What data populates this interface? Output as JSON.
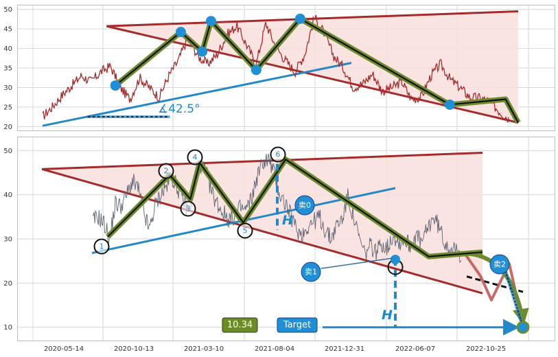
{
  "colors": {
    "price_top": "#a52a2a",
    "price_bottom": "#5c6474",
    "triangle_line": "#a52a2a",
    "triangle_fill": "#f9dfdc",
    "support": "#2288c9",
    "wave_outer": "#6e8c2e",
    "wave_inner": "#111111",
    "marker": "#1f8fd6",
    "value_box": "#6b8e23",
    "target_box": "#1f8fd6"
  },
  "chart_data": [
    {
      "type": "line",
      "panel": "top",
      "ylim": [
        19,
        51
      ],
      "y_ticks": [
        20,
        25,
        30,
        35,
        40,
        45,
        50
      ],
      "grid": true,
      "series": [
        {
          "role": "price",
          "values": [
            22.5,
            25,
            28,
            30.5,
            33,
            31.5,
            34,
            35.5,
            30,
            27,
            32.5,
            30,
            27.5,
            33,
            37,
            43,
            38,
            36,
            38.5,
            43.5,
            45.8,
            41,
            36,
            46.5,
            40.5,
            37,
            34,
            38.5,
            48,
            44,
            38,
            35,
            30,
            31,
            33.5,
            29,
            30,
            31.5,
            27,
            27.5,
            33,
            36,
            32,
            30,
            27.5,
            27.3,
            26.5,
            24,
            22
          ]
        },
        {
          "role": "wave",
          "points": [
            [
              30.2,
              30.5
            ],
            [
              52.5,
              44.2
            ],
            [
              59.8,
              39.2
            ],
            [
              62.8,
              47.0
            ],
            [
              78.2,
              34.5
            ],
            [
              93.2,
              47.6
            ],
            [
              144.2,
              25.6
            ],
            [
              163.2,
              27.0
            ],
            [
              167.5,
              21.0
            ]
          ]
        },
        {
          "role": "triangle_upper",
          "points": [
            [
              27.2,
              45.7
            ],
            [
              167.5,
              49.5
            ]
          ]
        },
        {
          "role": "triangle_lower",
          "points": [
            [
              27.2,
              45.7
            ],
            [
              167.5,
              21.0
            ]
          ]
        },
        {
          "role": "support",
          "points": [
            [
              0,
              20.2
            ],
            [
              104,
              36.3
            ]
          ]
        },
        {
          "role": "angle_baseline",
          "points": [
            [
              15.2,
              22.5
            ],
            [
              42.5,
              22.5
            ]
          ]
        }
      ],
      "annotations": [
        {
          "text": "∡42.5°"
        }
      ]
    },
    {
      "type": "line",
      "panel": "bottom",
      "ylim": [
        7,
        53
      ],
      "y_ticks": [
        10,
        20,
        30,
        40,
        50
      ],
      "x_ticks": [
        "2020-05-14",
        "2020-10-13",
        "2021-03-10",
        "2021-08-04",
        "2021-12-31",
        "2022-06-07",
        "2022-10-25"
      ],
      "grid": true,
      "series": [
        {
          "role": "price",
          "values": [
            34,
            35,
            33.5,
            30,
            38,
            37.5,
            40,
            43,
            41.5,
            36,
            32,
            37.5,
            40,
            42,
            44,
            41.5,
            39,
            36,
            42.5,
            47,
            45,
            40.5,
            38,
            36,
            34.5,
            35,
            37,
            36.5,
            39,
            44,
            47.5,
            48,
            45,
            40,
            38,
            35,
            32,
            31,
            33,
            34,
            35,
            32,
            30,
            33,
            34.5,
            39.5,
            35,
            30,
            26.5,
            28.5,
            27,
            29,
            28,
            31,
            29,
            30,
            28.5,
            31,
            29,
            32,
            35,
            33,
            29.5,
            28,
            27,
            26.5
          ]
        },
        {
          "role": "wave",
          "points": [
            [
              23.3,
              30.5
            ],
            [
              45.2,
              44.5
            ],
            [
              52.5,
              39.0
            ],
            [
              55.8,
              47.2
            ],
            [
              71.2,
              33.7
            ],
            [
              86.2,
              48.0
            ],
            [
              136.8,
              26.0
            ],
            [
              155.8,
              27.0
            ]
          ]
        },
        {
          "role": "triangle_upper",
          "points": [
            [
              0,
              45.8
            ],
            [
              155.8,
              49.5
            ]
          ]
        },
        {
          "role": "triangle_lower",
          "points": [
            [
              0,
              45.8
            ],
            [
              155.8,
              17.7
            ]
          ]
        },
        {
          "role": "support",
          "points": [
            [
              18,
              26.8
            ],
            [
              140,
              41.5
            ]
          ]
        },
        {
          "role": "path_1",
          "points": [
            [
              155.8,
              27.0
            ],
            [
              162,
              21.5
            ],
            [
              164.5,
              15.8
            ],
            [
              169.5,
              24.5
            ],
            [
              178.5,
              10.0
            ]
          ]
        },
        {
          "role": "path_2",
          "points": [
            [
              155.8,
              27.0
            ],
            [
              168,
              26.5
            ],
            [
              178.5,
              10.0
            ]
          ]
        },
        {
          "role": "extension",
          "points": [
            [
              151,
              21.5
            ],
            [
              178.5,
              18.0
            ]
          ]
        },
        {
          "role": "height_left",
          "points": [
            [
              86.2,
              47.0
            ],
            [
              86.2,
              32.0
            ]
          ]
        },
        {
          "role": "height_right",
          "points": [
            [
              136.8,
              25.5
            ],
            [
              136.8,
              10.0
            ]
          ]
        },
        {
          "role": "target_arrow",
          "points": [
            [
              106,
              10.0
            ],
            [
              175.5,
              10.0
            ]
          ]
        }
      ],
      "wave_labels": [
        "1",
        "2",
        "3",
        "4",
        "5",
        "6"
      ],
      "markers": [
        "卖0",
        "卖1",
        "卖2"
      ],
      "height_symbol": "H",
      "value_box": "10.34",
      "target_box": "Target"
    }
  ]
}
